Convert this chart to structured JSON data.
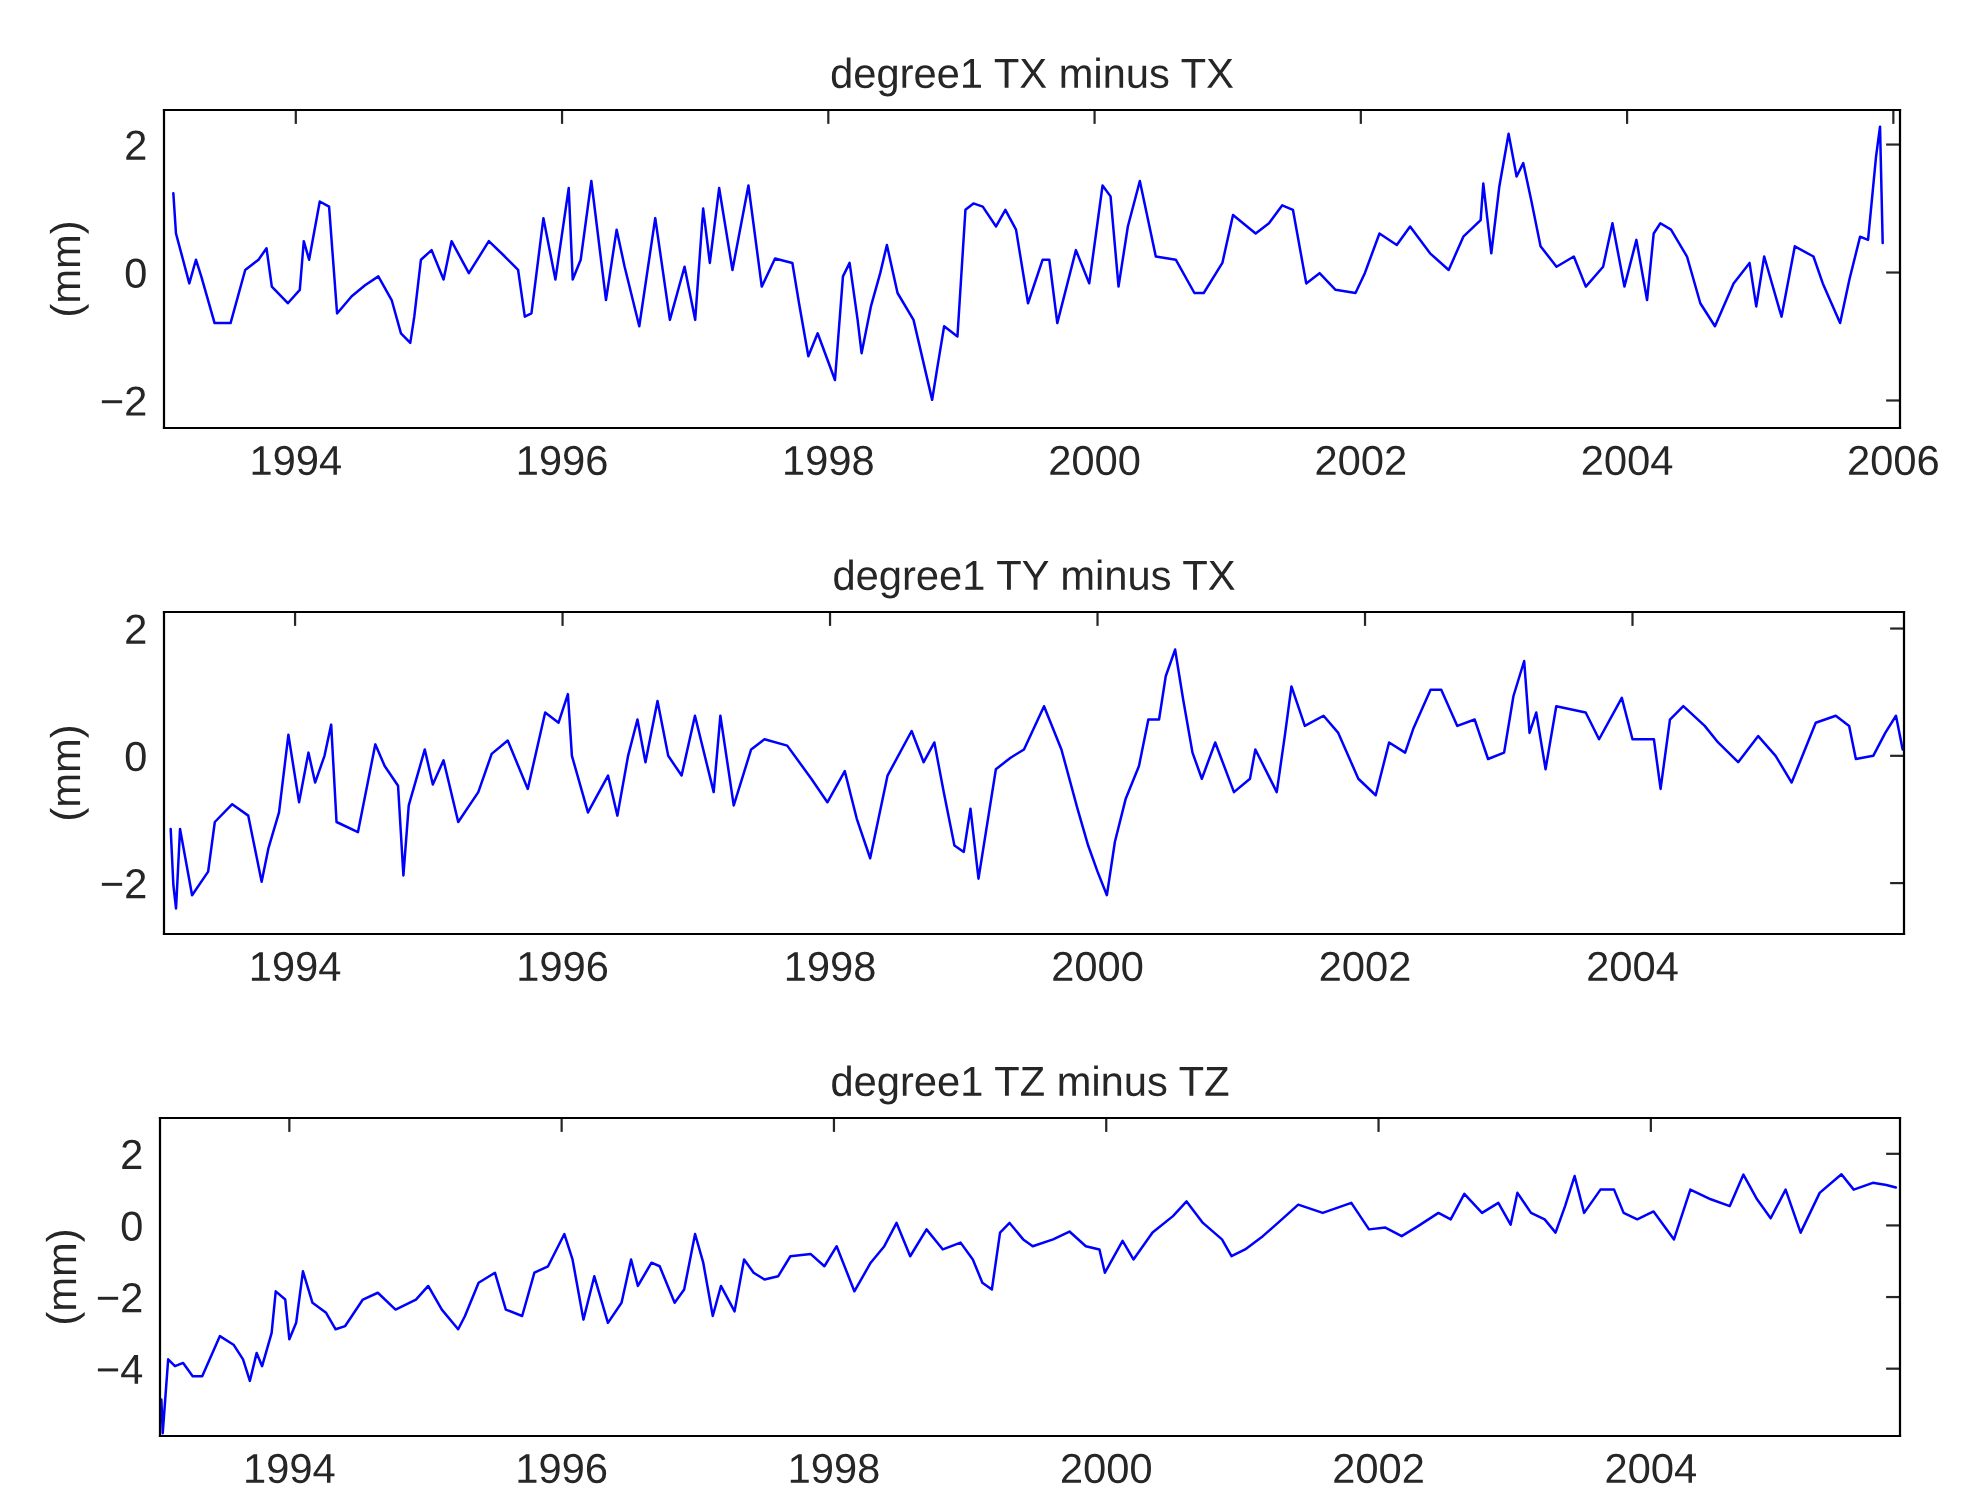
{
  "chart_data": [
    {
      "type": "line",
      "title": "degree1 TX minus TX",
      "ylabel": "(mm)",
      "xlim": [
        1993.01,
        2006.05
      ],
      "ylim": [
        -2.43,
        2.54
      ],
      "xticks": [
        1994,
        1996,
        1998,
        2000,
        2002,
        2004,
        2006
      ],
      "yticks": [
        -2,
        0,
        2
      ],
      "series": [
        {
          "color": "#0000ff",
          "x": [
            1993.08,
            1993.1,
            1993.14,
            1993.2,
            1993.25,
            1993.29,
            1993.39,
            1993.51,
            1993.62,
            1993.72,
            1993.78,
            1993.82,
            1993.94,
            1994.03,
            1994.06,
            1994.1,
            1994.18,
            1994.25,
            1994.31,
            1994.42,
            1994.52,
            1994.62,
            1994.72,
            1994.79,
            1994.86,
            1994.89,
            1994.94,
            1995.02,
            1995.11,
            1995.17,
            1995.3,
            1995.45,
            1995.57,
            1995.67,
            1995.72,
            1995.77,
            1995.86,
            1995.95,
            1996.05,
            1996.08,
            1996.14,
            1996.22,
            1996.33,
            1996.41,
            1996.47,
            1996.58,
            1996.7,
            1996.81,
            1996.92,
            1997.0,
            1997.06,
            1997.11,
            1997.18,
            1997.28,
            1997.4,
            1997.5,
            1997.6,
            1997.73,
            1997.78,
            1997.85,
            1997.92,
            1998.05,
            1998.11,
            1998.16,
            1998.22,
            1998.25,
            1998.32,
            1998.39,
            1998.44,
            1998.52,
            1998.64,
            1998.78,
            1998.82,
            1998.87,
            1998.97,
            1999.03,
            1999.09,
            1999.16,
            1999.26,
            1999.33,
            1999.41,
            1999.5,
            1999.61,
            1999.66,
            1999.72,
            1999.86,
            1999.96,
            2000.06,
            2000.12,
            2000.18,
            2000.25,
            2000.34,
            2000.46,
            2000.61,
            2000.75,
            2000.82,
            2000.96,
            2001.04,
            2001.21,
            2001.31,
            2001.41,
            2001.49,
            2001.59,
            2001.69,
            2001.81,
            2001.96,
            2002.03,
            2002.14,
            2002.27,
            2002.37,
            2002.52,
            2002.66,
            2002.77,
            2002.9,
            2002.92,
            2002.98,
            2003.04,
            2003.11,
            2003.17,
            2003.22,
            2003.28,
            2003.35,
            2003.47,
            2003.6,
            2003.69,
            2003.82,
            2003.89,
            2003.98,
            2004.07,
            2004.15,
            2004.2,
            2004.25,
            2004.33,
            2004.45,
            2004.55,
            2004.66,
            2004.8,
            2004.92,
            2004.97,
            2005.03,
            2005.16,
            2005.26,
            2005.4,
            2005.47,
            2005.6,
            2005.67,
            2005.75,
            2005.81,
            2005.87,
            2005.9,
            2005.92
          ],
          "values": [
            1.24,
            0.61,
            0.3,
            -0.17,
            0.2,
            -0.06,
            -0.79,
            -0.79,
            0.04,
            0.2,
            0.38,
            -0.22,
            -0.48,
            -0.27,
            0.49,
            0.2,
            1.11,
            1.03,
            -0.64,
            -0.37,
            -0.2,
            -0.06,
            -0.43,
            -0.95,
            -1.1,
            -0.69,
            0.2,
            0.35,
            -0.11,
            0.49,
            -0.01,
            0.49,
            0.25,
            0.04,
            -0.69,
            -0.64,
            0.85,
            -0.11,
            1.32,
            -0.11,
            0.2,
            1.43,
            -0.43,
            0.67,
            0.09,
            -0.84,
            0.85,
            -0.74,
            0.09,
            -0.74,
            1.0,
            0.15,
            1.32,
            0.04,
            1.36,
            -0.22,
            0.22,
            0.15,
            -0.48,
            -1.31,
            -0.95,
            -1.68,
            -0.06,
            0.15,
            -0.74,
            -1.26,
            -0.53,
            -0.01,
            0.43,
            -0.32,
            -0.74,
            -1.99,
            -1.47,
            -0.84,
            -1.0,
            0.98,
            1.08,
            1.03,
            0.72,
            0.98,
            0.67,
            -0.48,
            0.2,
            0.2,
            -0.79,
            0.35,
            -0.17,
            1.36,
            1.19,
            -0.22,
            0.72,
            1.43,
            0.25,
            0.2,
            -0.32,
            -0.32,
            0.15,
            0.9,
            0.61,
            0.77,
            1.05,
            0.98,
            -0.17,
            -0.01,
            -0.27,
            -0.32,
            -0.01,
            0.61,
            0.43,
            0.72,
            0.3,
            0.04,
            0.56,
            0.82,
            1.39,
            0.3,
            1.34,
            2.17,
            1.5,
            1.71,
            1.13,
            0.41,
            0.09,
            0.25,
            -0.22,
            0.09,
            0.77,
            -0.22,
            0.51,
            -0.43,
            0.61,
            0.77,
            0.67,
            0.25,
            -0.48,
            -0.84,
            -0.17,
            0.15,
            -0.53,
            0.25,
            -0.69,
            0.41,
            0.25,
            -0.17,
            -0.79,
            -0.11,
            0.56,
            0.51,
            1.81,
            2.28,
            0.46
          ]
        }
      ]
    },
    {
      "type": "line",
      "title": "degree1 TY minus TX",
      "ylabel": "(mm)",
      "xlim": [
        1993.02,
        2006.03
      ],
      "ylim": [
        -2.8,
        2.26
      ],
      "xticks": [
        1994,
        1996,
        1998,
        2000,
        2002,
        2004
      ],
      "yticks": [
        -2,
        0,
        2
      ],
      "series": [
        {
          "color": "#0000ff",
          "x": [
            1993.07,
            1993.09,
            1993.11,
            1993.14,
            1993.23,
            1993.35,
            1993.4,
            1993.53,
            1993.65,
            1993.75,
            1993.8,
            1993.88,
            1993.95,
            1994.03,
            1994.1,
            1994.15,
            1994.22,
            1994.27,
            1994.31,
            1994.47,
            1994.6,
            1994.67,
            1994.77,
            1994.81,
            1994.85,
            1994.97,
            1995.03,
            1995.11,
            1995.22,
            1995.37,
            1995.47,
            1995.59,
            1995.74,
            1995.87,
            1995.97,
            1996.04,
            1996.07,
            1996.19,
            1996.34,
            1996.41,
            1996.49,
            1996.56,
            1996.62,
            1996.71,
            1996.79,
            1996.89,
            1996.99,
            1997.13,
            1997.18,
            1997.28,
            1997.41,
            1997.51,
            1997.68,
            1997.86,
            1997.98,
            1998.11,
            1998.2,
            1998.3,
            1998.43,
            1998.61,
            1998.7,
            1998.78,
            1998.85,
            1998.93,
            1999.0,
            1999.05,
            1999.11,
            1999.24,
            1999.35,
            1999.45,
            1999.6,
            1999.73,
            1999.85,
            1999.93,
            2000.0,
            2000.07,
            2000.13,
            2000.21,
            2000.31,
            2000.38,
            2000.46,
            2000.51,
            2000.58,
            2000.64,
            2000.71,
            2000.78,
            2000.88,
            2001.02,
            2001.14,
            2001.18,
            2001.34,
            2001.4,
            2001.45,
            2001.55,
            2001.69,
            2001.8,
            2001.95,
            2002.08,
            2002.18,
            2002.3,
            2002.36,
            2002.49,
            2002.57,
            2002.69,
            2002.82,
            2002.92,
            2003.04,
            2003.11,
            2003.19,
            2003.23,
            2003.28,
            2003.35,
            2003.43,
            2003.65,
            2003.75,
            2003.92,
            2004.0,
            2004.16,
            2004.21,
            2004.28,
            2004.38,
            2004.54,
            2004.64,
            2004.79,
            2004.94,
            2005.07,
            2005.19,
            2005.37,
            2005.52,
            2005.62,
            2005.67,
            2005.8,
            2005.89,
            2005.97,
            2006.02
          ],
          "values": [
            -1.15,
            -2.03,
            -2.4,
            -1.15,
            -2.19,
            -1.82,
            -1.04,
            -0.76,
            -0.94,
            -1.98,
            -1.46,
            -0.89,
            0.33,
            -0.73,
            0.05,
            -0.42,
            0,
            0.49,
            -1.04,
            -1.2,
            0.18,
            -0.16,
            -0.47,
            -1.88,
            -0.78,
            0.1,
            -0.45,
            -0.07,
            -1.04,
            -0.57,
            0.03,
            0.24,
            -0.52,
            0.68,
            0.52,
            0.97,
            0,
            -0.89,
            -0.31,
            -0.94,
            0,
            0.57,
            -0.1,
            0.86,
            0,
            -0.31,
            0.63,
            -0.57,
            0.63,
            -0.78,
            0.1,
            0.26,
            0.16,
            -0.36,
            -0.73,
            -0.24,
            -0.99,
            -1.61,
            -0.31,
            0.39,
            -0.1,
            0.21,
            -0.57,
            -1.41,
            -1.51,
            -0.83,
            -1.93,
            -0.21,
            -0.03,
            0.1,
            0.78,
            0.1,
            -0.83,
            -1.41,
            -1.82,
            -2.19,
            -1.35,
            -0.68,
            -0.16,
            0.57,
            0.57,
            1.25,
            1.67,
            0.89,
            0.05,
            -0.36,
            0.21,
            -0.57,
            -0.36,
            0.1,
            -0.57,
            0.31,
            1.09,
            0.47,
            0.63,
            0.36,
            -0.36,
            -0.62,
            0.21,
            0.05,
            0.42,
            1.04,
            1.04,
            0.47,
            0.57,
            -0.05,
            0.05,
            0.94,
            1.49,
            0.36,
            0.68,
            -0.21,
            0.78,
            0.68,
            0.26,
            0.91,
            0.26,
            0.26,
            -0.52,
            0.57,
            0.78,
            0.47,
            0.21,
            -0.1,
            0.31,
            0,
            -0.42,
            0.52,
            0.63,
            0.47,
            -0.05,
            0,
            0.36,
            0.63,
            0.1
          ]
        }
      ]
    },
    {
      "type": "line",
      "title": "degree1 TZ minus TZ",
      "ylabel": "(mm)",
      "xlim": [
        1993.05,
        2005.83
      ],
      "ylim": [
        -5.88,
        3.0
      ],
      "xticks": [
        1994,
        1996,
        1998,
        2000,
        2002,
        2004
      ],
      "yticks": [
        -4,
        -2,
        0,
        2
      ],
      "series": [
        {
          "color": "#0000ff",
          "x": [
            1993.06,
            1993.07,
            1993.11,
            1993.16,
            1993.22,
            1993.29,
            1993.36,
            1993.49,
            1993.59,
            1993.66,
            1993.71,
            1993.76,
            1993.8,
            1993.87,
            1993.9,
            1993.97,
            1994.0,
            1994.05,
            1994.1,
            1994.17,
            1994.27,
            1994.34,
            1994.41,
            1994.54,
            1994.65,
            1994.78,
            1994.93,
            1995.02,
            1995.12,
            1995.24,
            1995.29,
            1995.39,
            1995.51,
            1995.59,
            1995.71,
            1995.8,
            1995.9,
            1996.02,
            1996.08,
            1996.16,
            1996.24,
            1996.34,
            1996.44,
            1996.51,
            1996.56,
            1996.66,
            1996.72,
            1996.83,
            1996.9,
            1996.98,
            1997.04,
            1997.11,
            1997.17,
            1997.27,
            1997.34,
            1997.41,
            1997.49,
            1997.59,
            1997.68,
            1997.83,
            1997.93,
            1998.02,
            1998.15,
            1998.27,
            1998.37,
            1998.46,
            1998.56,
            1998.68,
            1998.8,
            1998.93,
            1999.02,
            1999.09,
            1999.16,
            1999.22,
            1999.29,
            1999.39,
            1999.46,
            1999.61,
            1999.73,
            1999.85,
            1999.95,
            1999.99,
            2000.12,
            2000.2,
            2000.34,
            2000.49,
            2000.59,
            2000.71,
            2000.85,
            2000.92,
            2001.02,
            2001.15,
            2001.29,
            2001.41,
            2001.59,
            2001.8,
            2001.93,
            2002.05,
            2002.17,
            2002.29,
            2002.44,
            2002.53,
            2002.63,
            2002.76,
            2002.88,
            2002.97,
            2003.02,
            2003.12,
            2003.22,
            2003.3,
            2003.37,
            2003.44,
            2003.51,
            2003.63,
            2003.73,
            2003.8,
            2003.9,
            2004.02,
            2004.17,
            2004.29,
            2004.44,
            2004.58,
            2004.68,
            2004.78,
            2004.88,
            2004.99,
            2005.1,
            2005.24,
            2005.4,
            2005.49,
            2005.63,
            2005.73,
            2005.8
          ],
          "values": [
            -4.86,
            -5.8,
            -3.74,
            -3.93,
            -3.84,
            -4.21,
            -4.21,
            -3.09,
            -3.33,
            -3.74,
            -4.34,
            -3.56,
            -3.93,
            -3.0,
            -1.84,
            -2.07,
            -3.18,
            -2.72,
            -1.28,
            -2.16,
            -2.44,
            -2.9,
            -2.81,
            -2.07,
            -1.88,
            -2.35,
            -2.07,
            -1.69,
            -2.35,
            -2.9,
            -2.53,
            -1.6,
            -1.32,
            -2.35,
            -2.53,
            -1.32,
            -1.14,
            -0.24,
            -0.95,
            -2.63,
            -1.42,
            -2.72,
            -2.16,
            -0.95,
            -1.69,
            -1.04,
            -1.14,
            -2.16,
            -1.79,
            -0.24,
            -1.04,
            -2.53,
            -1.69,
            -2.4,
            -0.95,
            -1.32,
            -1.51,
            -1.42,
            -0.86,
            -0.8,
            -1.14,
            -0.58,
            -1.84,
            -1.04,
            -0.58,
            0.07,
            -0.86,
            -0.11,
            -0.67,
            -0.48,
            -0.95,
            -1.6,
            -1.79,
            -0.2,
            0.07,
            -0.39,
            -0.58,
            -0.39,
            -0.17,
            -0.58,
            -0.67,
            -1.32,
            -0.43,
            -0.95,
            -0.2,
            0.26,
            0.67,
            0.07,
            -0.39,
            -0.86,
            -0.67,
            -0.3,
            0.17,
            0.58,
            0.35,
            0.63,
            -0.11,
            -0.06,
            -0.3,
            -0.02,
            0.35,
            0.17,
            0.88,
            0.35,
            0.63,
            0.02,
            0.91,
            0.35,
            0.17,
            -0.2,
            0.54,
            1.38,
            0.35,
            1.0,
            1.0,
            0.35,
            0.17,
            0.39,
            -0.39,
            1.0,
            0.73,
            0.54,
            1.42,
            0.73,
            0.2,
            1.0,
            -0.2,
            0.91,
            1.43,
            1.0,
            1.19,
            1.13,
            1.06
          ]
        }
      ]
    }
  ]
}
